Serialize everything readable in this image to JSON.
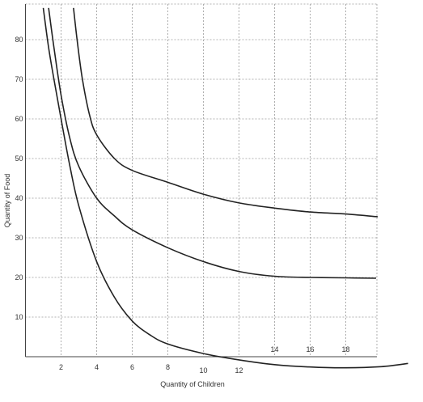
{
  "chart_data": {
    "type": "line",
    "title": "",
    "xlabel": "Quantity of Children",
    "ylabel": "Quantity of Food",
    "xlim": [
      0,
      20
    ],
    "ylim": [
      0,
      88
    ],
    "x_ticks_bottom": [
      "2",
      "4",
      "6",
      "8",
      "10",
      "12"
    ],
    "x_ticks_inner": [
      "14",
      "16",
      "18"
    ],
    "y_ticks": [
      "10",
      "20",
      "30",
      "40",
      "50",
      "60",
      "70",
      "80"
    ],
    "grid": true,
    "series": [
      {
        "x": [
          2.7,
          2.9,
          3.2,
          3.6,
          4.0,
          5.0,
          6.0,
          8.0,
          10.0,
          12.0,
          14.0,
          16.0,
          18.0,
          19.8
        ],
        "y": [
          88,
          80,
          70,
          61,
          56,
          50,
          47,
          44,
          41,
          38.8,
          37.5,
          36.5,
          36,
          35.3
        ]
      },
      {
        "x": [
          1.3,
          1.6,
          2.0,
          2.5,
          3.0,
          4.0,
          5.0,
          6.0,
          8.0,
          10.0,
          12.0,
          14.0,
          16.0,
          18.0,
          19.7
        ],
        "y": [
          88,
          78,
          66,
          55,
          48,
          40,
          35.5,
          32,
          27.5,
          24,
          21.5,
          20.3,
          20.0,
          19.9,
          19.8
        ]
      },
      {
        "x": [
          1.0,
          1.3,
          1.6,
          2.0,
          2.5,
          3.0,
          4.0,
          5.0,
          6.0,
          7.0,
          8.0,
          10.0,
          12.0,
          14.0,
          16.0,
          18.0,
          20.0,
          21.5
        ],
        "y": [
          88,
          78,
          70,
          60,
          48,
          38,
          24,
          15,
          9,
          5.5,
          3.2,
          0.8,
          -0.8,
          -2,
          -2.6,
          -2.8,
          -2.5,
          -1.7
        ]
      }
    ]
  }
}
